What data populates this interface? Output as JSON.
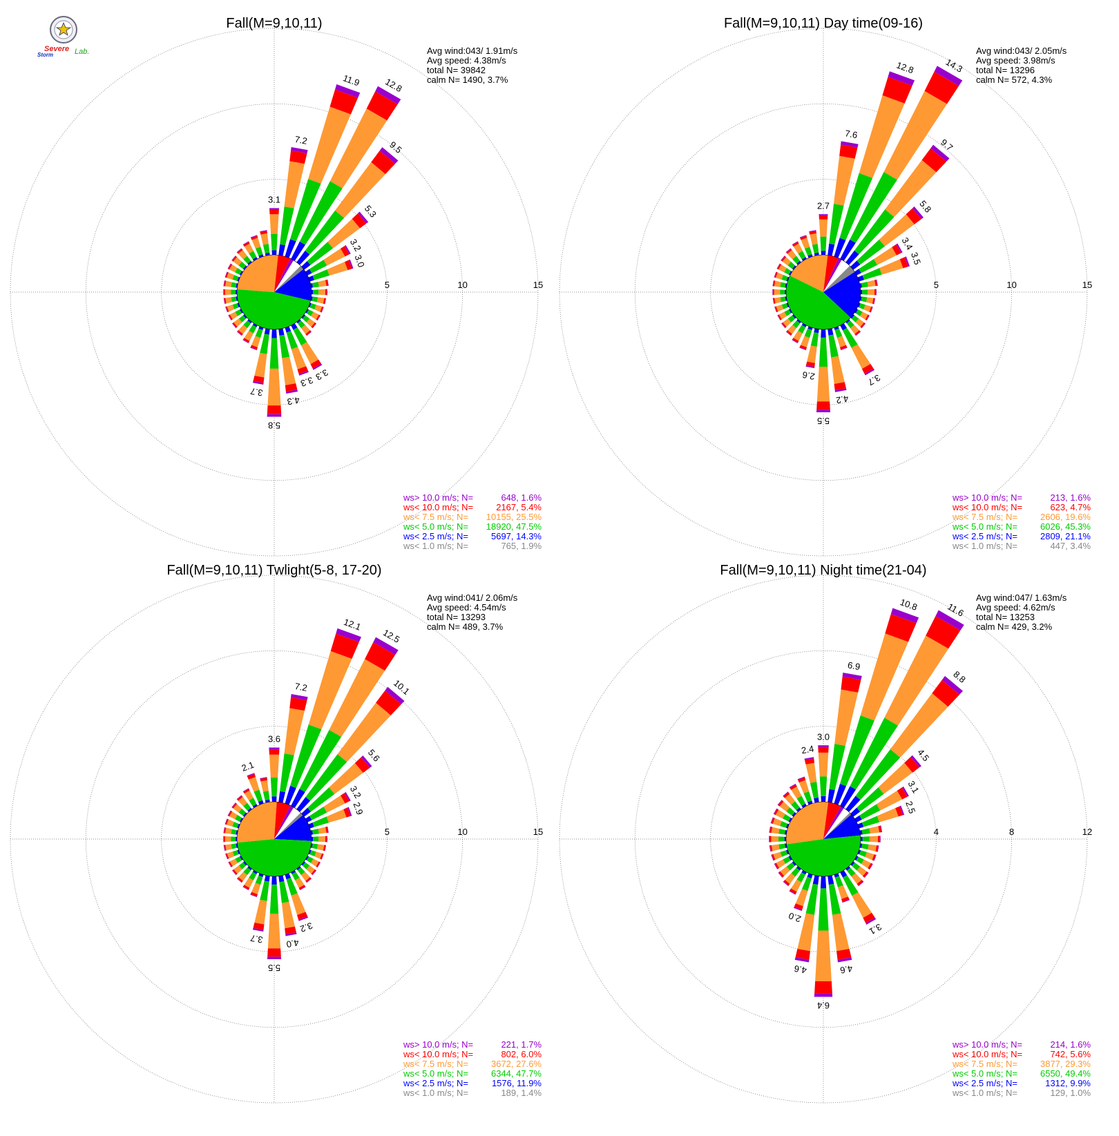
{
  "logo": {
    "word1": "Severe",
    "word2": "Storm",
    "word3": "Lab."
  },
  "legend_labels": [
    "ws> 10.0 m/s; N=",
    "ws< 10.0 m/s; N=",
    "ws<  7.5 m/s; N=",
    "ws<  5.0 m/s; N=",
    "ws<  2.5 m/s; N=",
    "ws<  1.0 m/s; N="
  ],
  "colors": {
    "above_10": "#9900cc",
    "below_10": "#ff0000",
    "below_7_5": "#ff9933",
    "below_5": "#00cc00",
    "below_2_5": "#0000ff",
    "below_1": "#888888",
    "grid": "#666666"
  },
  "chart_data": [
    {
      "type": "wind_rose",
      "title": "Fall(M=9,10,11)",
      "stats": [
        "Avg wind:043/ 1.91m/s",
        "Avg speed: 4.38m/s",
        "total N=      39842",
        "calm N=   1490,   3.7%"
      ],
      "rmax": 15,
      "ring_labels": [
        "5",
        "10",
        "15"
      ],
      "labeled_petals": [
        {
          "dir": 0,
          "value": 3.1,
          "label": "3.1"
        },
        {
          "dir": 10,
          "value": 7.2,
          "label": "7.2"
        },
        {
          "dir": 20,
          "value": 11.9,
          "label": "11.9"
        },
        {
          "dir": 30,
          "value": 12.8,
          "label": "12.8"
        },
        {
          "dir": 40,
          "value": 9.5,
          "label": "9.5"
        },
        {
          "dir": 50,
          "value": 5.3,
          "label": "5.3"
        },
        {
          "dir": 60,
          "value": 3.2,
          "label": "3.2"
        },
        {
          "dir": 70,
          "value": 3.0,
          "label": "3.0"
        },
        {
          "dir": 150,
          "value": 3.3,
          "label": "3.3"
        },
        {
          "dir": 160,
          "value": 3.3,
          "label": "3.3"
        },
        {
          "dir": 170,
          "value": 4.3,
          "label": "4.3"
        },
        {
          "dir": 180,
          "value": 5.8,
          "label": "5.8"
        },
        {
          "dir": 190,
          "value": 3.7,
          "label": "3.7"
        }
      ],
      "legend": [
        {
          "class": "ws>10.0",
          "n": 648,
          "pct": 1.6,
          "text": "648,  1.6%"
        },
        {
          "class": "ws<10.0",
          "n": 2167,
          "pct": 5.4,
          "text": "2167,  5.4%"
        },
        {
          "class": "ws<7.5",
          "n": 10155,
          "pct": 25.5,
          "text": "10155, 25.5%"
        },
        {
          "class": "ws<5.0",
          "n": 18920,
          "pct": 47.5,
          "text": "18920, 47.5%"
        },
        {
          "class": "ws<2.5",
          "n": 5697,
          "pct": 14.3,
          "text": "5697, 14.3%"
        },
        {
          "class": "ws<1.0",
          "n": 765,
          "pct": 1.9,
          "text": "765,  1.9%"
        }
      ]
    },
    {
      "type": "wind_rose",
      "title": "Fall(M=9,10,11) Day time(09-16)",
      "stats": [
        "Avg wind:043/ 2.05m/s",
        "Avg speed: 3.98m/s",
        "total N=      13296",
        "calm N=    572,   4.3%"
      ],
      "rmax": 15,
      "ring_labels": [
        "5",
        "10",
        "15"
      ],
      "labeled_petals": [
        {
          "dir": 0,
          "value": 2.7,
          "label": "2.7"
        },
        {
          "dir": 10,
          "value": 7.6,
          "label": "7.6"
        },
        {
          "dir": 20,
          "value": 12.8,
          "label": "12.8"
        },
        {
          "dir": 30,
          "value": 14.3,
          "label": "14.3"
        },
        {
          "dir": 40,
          "value": 9.7,
          "label": "9.7"
        },
        {
          "dir": 50,
          "value": 5.8,
          "label": "5.8"
        },
        {
          "dir": 60,
          "value": 3.4,
          "label": "3.4"
        },
        {
          "dir": 70,
          "value": 3.5,
          "label": "3.5"
        },
        {
          "dir": 150,
          "value": 3.7,
          "label": "3.7"
        },
        {
          "dir": 170,
          "value": 4.2,
          "label": "4.2"
        },
        {
          "dir": 180,
          "value": 5.5,
          "label": "5.5"
        },
        {
          "dir": 190,
          "value": 2.6,
          "label": "2.6"
        }
      ],
      "legend": [
        {
          "class": "ws>10.0",
          "n": 213,
          "pct": 1.6,
          "text": "213,  1.6%"
        },
        {
          "class": "ws<10.0",
          "n": 623,
          "pct": 4.7,
          "text": "623,  4.7%"
        },
        {
          "class": "ws<7.5",
          "n": 2606,
          "pct": 19.6,
          "text": "2606, 19.6%"
        },
        {
          "class": "ws<5.0",
          "n": 6026,
          "pct": 45.3,
          "text": "6026, 45.3%"
        },
        {
          "class": "ws<2.5",
          "n": 2809,
          "pct": 21.1,
          "text": "2809, 21.1%"
        },
        {
          "class": "ws<1.0",
          "n": 447,
          "pct": 3.4,
          "text": "447,  3.4%"
        }
      ]
    },
    {
      "type": "wind_rose",
      "title": "Fall(M=9,10,11) Twlight(5-8, 17-20)",
      "stats": [
        "Avg wind:041/ 2.06m/s",
        "Avg speed: 4.54m/s",
        "total N=      13293",
        "calm N=    489,   3.7%"
      ],
      "rmax": 15,
      "ring_labels": [
        "5",
        "10",
        "15"
      ],
      "labeled_petals": [
        {
          "dir": 340,
          "value": 2.1,
          "label": "2.1"
        },
        {
          "dir": 0,
          "value": 3.6,
          "label": "3.6"
        },
        {
          "dir": 10,
          "value": 7.2,
          "label": "7.2"
        },
        {
          "dir": 20,
          "value": 12.1,
          "label": "12.1"
        },
        {
          "dir": 30,
          "value": 12.5,
          "label": "12.5"
        },
        {
          "dir": 40,
          "value": 10.1,
          "label": "10.1"
        },
        {
          "dir": 50,
          "value": 5.6,
          "label": "5.6"
        },
        {
          "dir": 60,
          "value": 3.2,
          "label": "3.2"
        },
        {
          "dir": 70,
          "value": 2.9,
          "label": "2.9"
        },
        {
          "dir": 160,
          "value": 3.2,
          "label": "3.2"
        },
        {
          "dir": 170,
          "value": 4.0,
          "label": "4.0"
        },
        {
          "dir": 180,
          "value": 5.5,
          "label": "5.5"
        },
        {
          "dir": 190,
          "value": 3.7,
          "label": "3.7"
        }
      ],
      "legend": [
        {
          "class": "ws>10.0",
          "n": 221,
          "pct": 1.7,
          "text": "221,  1.7%"
        },
        {
          "class": "ws<10.0",
          "n": 802,
          "pct": 6.0,
          "text": "802,  6.0%"
        },
        {
          "class": "ws<7.5",
          "n": 3672,
          "pct": 27.6,
          "text": "3672, 27.6%"
        },
        {
          "class": "ws<5.0",
          "n": 6344,
          "pct": 47.7,
          "text": "6344, 47.7%"
        },
        {
          "class": "ws<2.5",
          "n": 1576,
          "pct": 11.9,
          "text": "1576, 11.9%"
        },
        {
          "class": "ws<1.0",
          "n": 189,
          "pct": 1.4,
          "text": "189,  1.4%"
        }
      ]
    },
    {
      "type": "wind_rose",
      "title": "Fall(M=9,10,11) Night time(21-04)",
      "stats": [
        "Avg wind:047/ 1.63m/s",
        "Avg speed: 4.62m/s",
        "total N=      13253",
        "calm N=    429,   3.2%"
      ],
      "rmax": 12,
      "ring_labels": [
        "4",
        "8",
        "12"
      ],
      "labeled_petals": [
        {
          "dir": 350,
          "value": 2.4,
          "label": "2.4"
        },
        {
          "dir": 0,
          "value": 3.0,
          "label": "3.0"
        },
        {
          "dir": 10,
          "value": 6.9,
          "label": "6.9"
        },
        {
          "dir": 20,
          "value": 10.8,
          "label": "10.8"
        },
        {
          "dir": 30,
          "value": 11.6,
          "label": "11.6"
        },
        {
          "dir": 40,
          "value": 8.8,
          "label": "8.8"
        },
        {
          "dir": 50,
          "value": 4.5,
          "label": "4.5"
        },
        {
          "dir": 60,
          "value": 3.1,
          "label": "3.1"
        },
        {
          "dir": 70,
          "value": 2.5,
          "label": "2.5"
        },
        {
          "dir": 150,
          "value": 3.1,
          "label": "3.1"
        },
        {
          "dir": 170,
          "value": 4.6,
          "label": "4.6"
        },
        {
          "dir": 180,
          "value": 6.4,
          "label": "6.4"
        },
        {
          "dir": 190,
          "value": 4.6,
          "label": "4.6"
        },
        {
          "dir": 200,
          "value": 2.0,
          "label": "2.0"
        }
      ],
      "legend": [
        {
          "class": "ws>10.0",
          "n": 214,
          "pct": 1.6,
          "text": "214,  1.6%"
        },
        {
          "class": "ws<10.0",
          "n": 742,
          "pct": 5.6,
          "text": "742,  5.6%"
        },
        {
          "class": "ws<7.5",
          "n": 3877,
          "pct": 29.3,
          "text": "3877, 29.3%"
        },
        {
          "class": "ws<5.0",
          "n": 6550,
          "pct": 49.4,
          "text": "6550, 49.4%"
        },
        {
          "class": "ws<2.5",
          "n": 1312,
          "pct": 9.9,
          "text": "1312,  9.9%"
        },
        {
          "class": "ws<1.0",
          "n": 129,
          "pct": 1.0,
          "text": "129,  1.0%"
        }
      ]
    }
  ]
}
